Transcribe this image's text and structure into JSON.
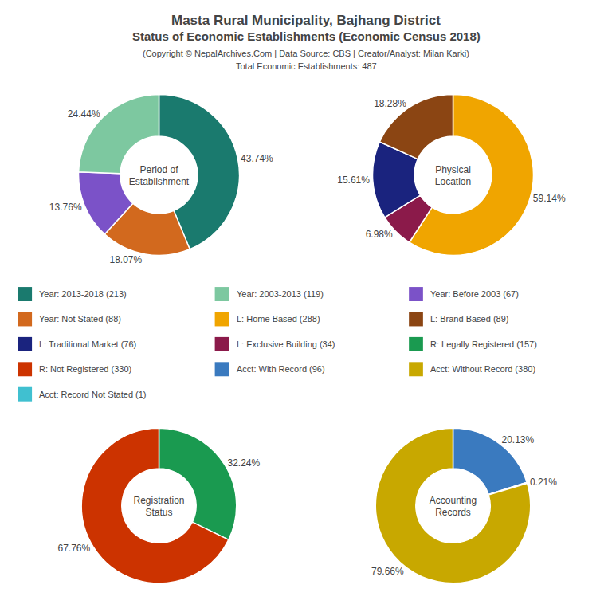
{
  "title": [
    "Masta Rural Municipality, Bajhang District",
    "Status of Economic Establishments (Economic Census 2018)"
  ],
  "subtitle": [
    "(Copyright © NepalArchives.Com | Data Source: CBS | Creator/Analyst: Milan Karki)",
    "Total Economic Establishments: 487"
  ],
  "chart_data": [
    {
      "type": "pie",
      "title": "Period of\nEstablishment",
      "values": [
        43.74,
        18.07,
        13.76,
        24.44
      ],
      "value_labels": [
        "43.74%",
        "18.07%",
        "13.76%",
        "24.44%"
      ],
      "colors": [
        "#1a7a6e",
        "#d2691e",
        "#7b52c8",
        "#7dc8a0"
      ],
      "data_labels": true
    },
    {
      "type": "pie",
      "title": "Physical\nLocation",
      "values": [
        59.14,
        6.98,
        15.61,
        18.28
      ],
      "value_labels": [
        "59.14%",
        "6.98%",
        "15.61%",
        "18.28%"
      ],
      "colors": [
        "#f0a500",
        "#8B1a4a",
        "#1a237e",
        "#8B4513"
      ],
      "data_labels": true
    },
    {
      "type": "pie",
      "title": "Registration\nStatus",
      "values": [
        32.24,
        67.76
      ],
      "value_labels": [
        "32.24%",
        "67.76%"
      ],
      "colors": [
        "#1a9a50",
        "#cc3300"
      ],
      "data_labels": true
    },
    {
      "type": "pie",
      "title": "Accounting\nRecords",
      "values": [
        20.13,
        0.21,
        79.66
      ],
      "value_labels": [
        "20.13%",
        "0.21%",
        "79.66%"
      ],
      "colors": [
        "#3a7abf",
        "#d9534f",
        "#c8a800"
      ],
      "data_labels": true
    }
  ],
  "legend_columns": [
    [
      {
        "label": "Year: 2013-2018 (213)",
        "color": "#1a7a6e"
      },
      {
        "label": "Year: Not Stated (88)",
        "color": "#d2691e"
      },
      {
        "label": "L: Traditional Market (76)",
        "color": "#1a237e"
      },
      {
        "label": "R: Not Registered (330)",
        "color": "#cc3300"
      },
      {
        "label": "Acct: Record Not Stated (1)",
        "color": "#40c0d0"
      }
    ],
    [
      {
        "label": "Year: 2003-2013 (119)",
        "color": "#7dc8a0"
      },
      {
        "label": "L: Home Based (288)",
        "color": "#f0a500"
      },
      {
        "label": "L: Exclusive Building (34)",
        "color": "#8B1a4a"
      },
      {
        "label": "Acct: With Record (96)",
        "color": "#3a7abf"
      }
    ],
    [
      {
        "label": "Year: Before 2003 (67)",
        "color": "#7b52c8"
      },
      {
        "label": "L: Brand Based (89)",
        "color": "#8B4513"
      },
      {
        "label": "R: Legally Registered (157)",
        "color": "#1a9a50"
      },
      {
        "label": "Acct: Without Record (380)",
        "color": "#c8a800"
      }
    ]
  ]
}
